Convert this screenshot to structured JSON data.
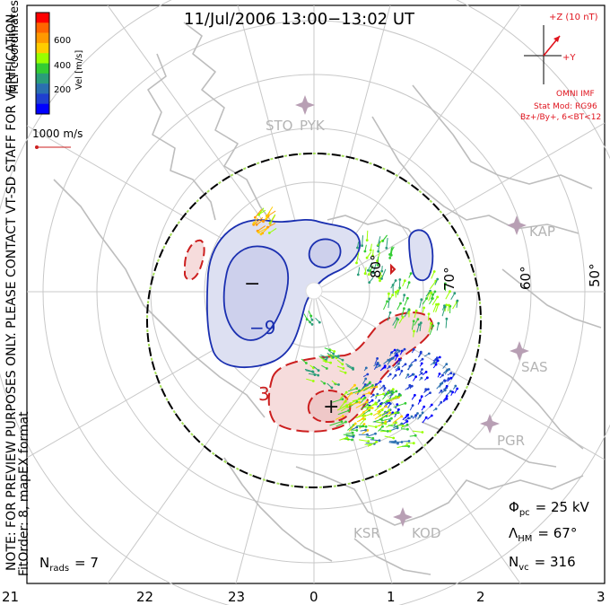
{
  "title": "11/Jul/2006 13:00−13:02 UT",
  "colorbar": {
    "ticks": [
      "600",
      "400",
      "200"
    ],
    "label": "Vel [m/s]",
    "coords_label": "MLT coordinates",
    "colors": [
      "#ff0000",
      "#ff6600",
      "#ff9900",
      "#ffcc00",
      "#99ff00",
      "#33cc33",
      "#2a9d7a",
      "#2a6fb0",
      "#1f3fd0",
      "#0000ff"
    ]
  },
  "scale_vector": "1000 m/s",
  "imf": {
    "z_label": "+Z (10 nT)",
    "y_label": "+Y",
    "source": "OMNI IMF",
    "model": "Stat Mod: RG96",
    "condition": "Bz+/By+, 6<BT<12"
  },
  "watermark": "NOTE: FOR PREVIEW PURPOSES ONLY. PLEASE CONTACT VT-SD STAFF FOR VERIFICATION.",
  "fit_order": "FitOrder: 8, mapEX format",
  "latitude_labels": [
    "80°",
    "70°",
    "60°",
    "50°"
  ],
  "stations": [
    "STO",
    "PYK",
    "KAP",
    "SAS",
    "PGR",
    "KSR",
    "KOD"
  ],
  "contours": {
    "negative_label": "−9",
    "positive_label": "3",
    "minus_symbol": "−",
    "plus_symbol": "+"
  },
  "stats": {
    "phi_pc_symbol": "Φ",
    "phi_pc_sub": "pc",
    "phi_pc_value": "= 25 kV",
    "lambda_hm_symbol": "Λ",
    "lambda_hm_sub": "HM",
    "lambda_hm_value": "= 67°",
    "n_vc_symbol": "N",
    "n_vc_sub": "vc",
    "n_vc_value": "= 316",
    "n_rads_symbol": "N",
    "n_rads_sub": "rads",
    "n_rads_value": "= 7"
  },
  "mlt_axis": [
    "21",
    "22",
    "23",
    "0",
    "1",
    "2",
    "3"
  ],
  "colors": {
    "negative_fill": "#dde0f2",
    "negative_line": "#1a2fb0",
    "positive_fill": "#f6dcdc",
    "positive_line": "#cc1f1f",
    "grid": "#c8c8c8",
    "land": "#bdbdbd",
    "imf_red": "#e0141e"
  }
}
